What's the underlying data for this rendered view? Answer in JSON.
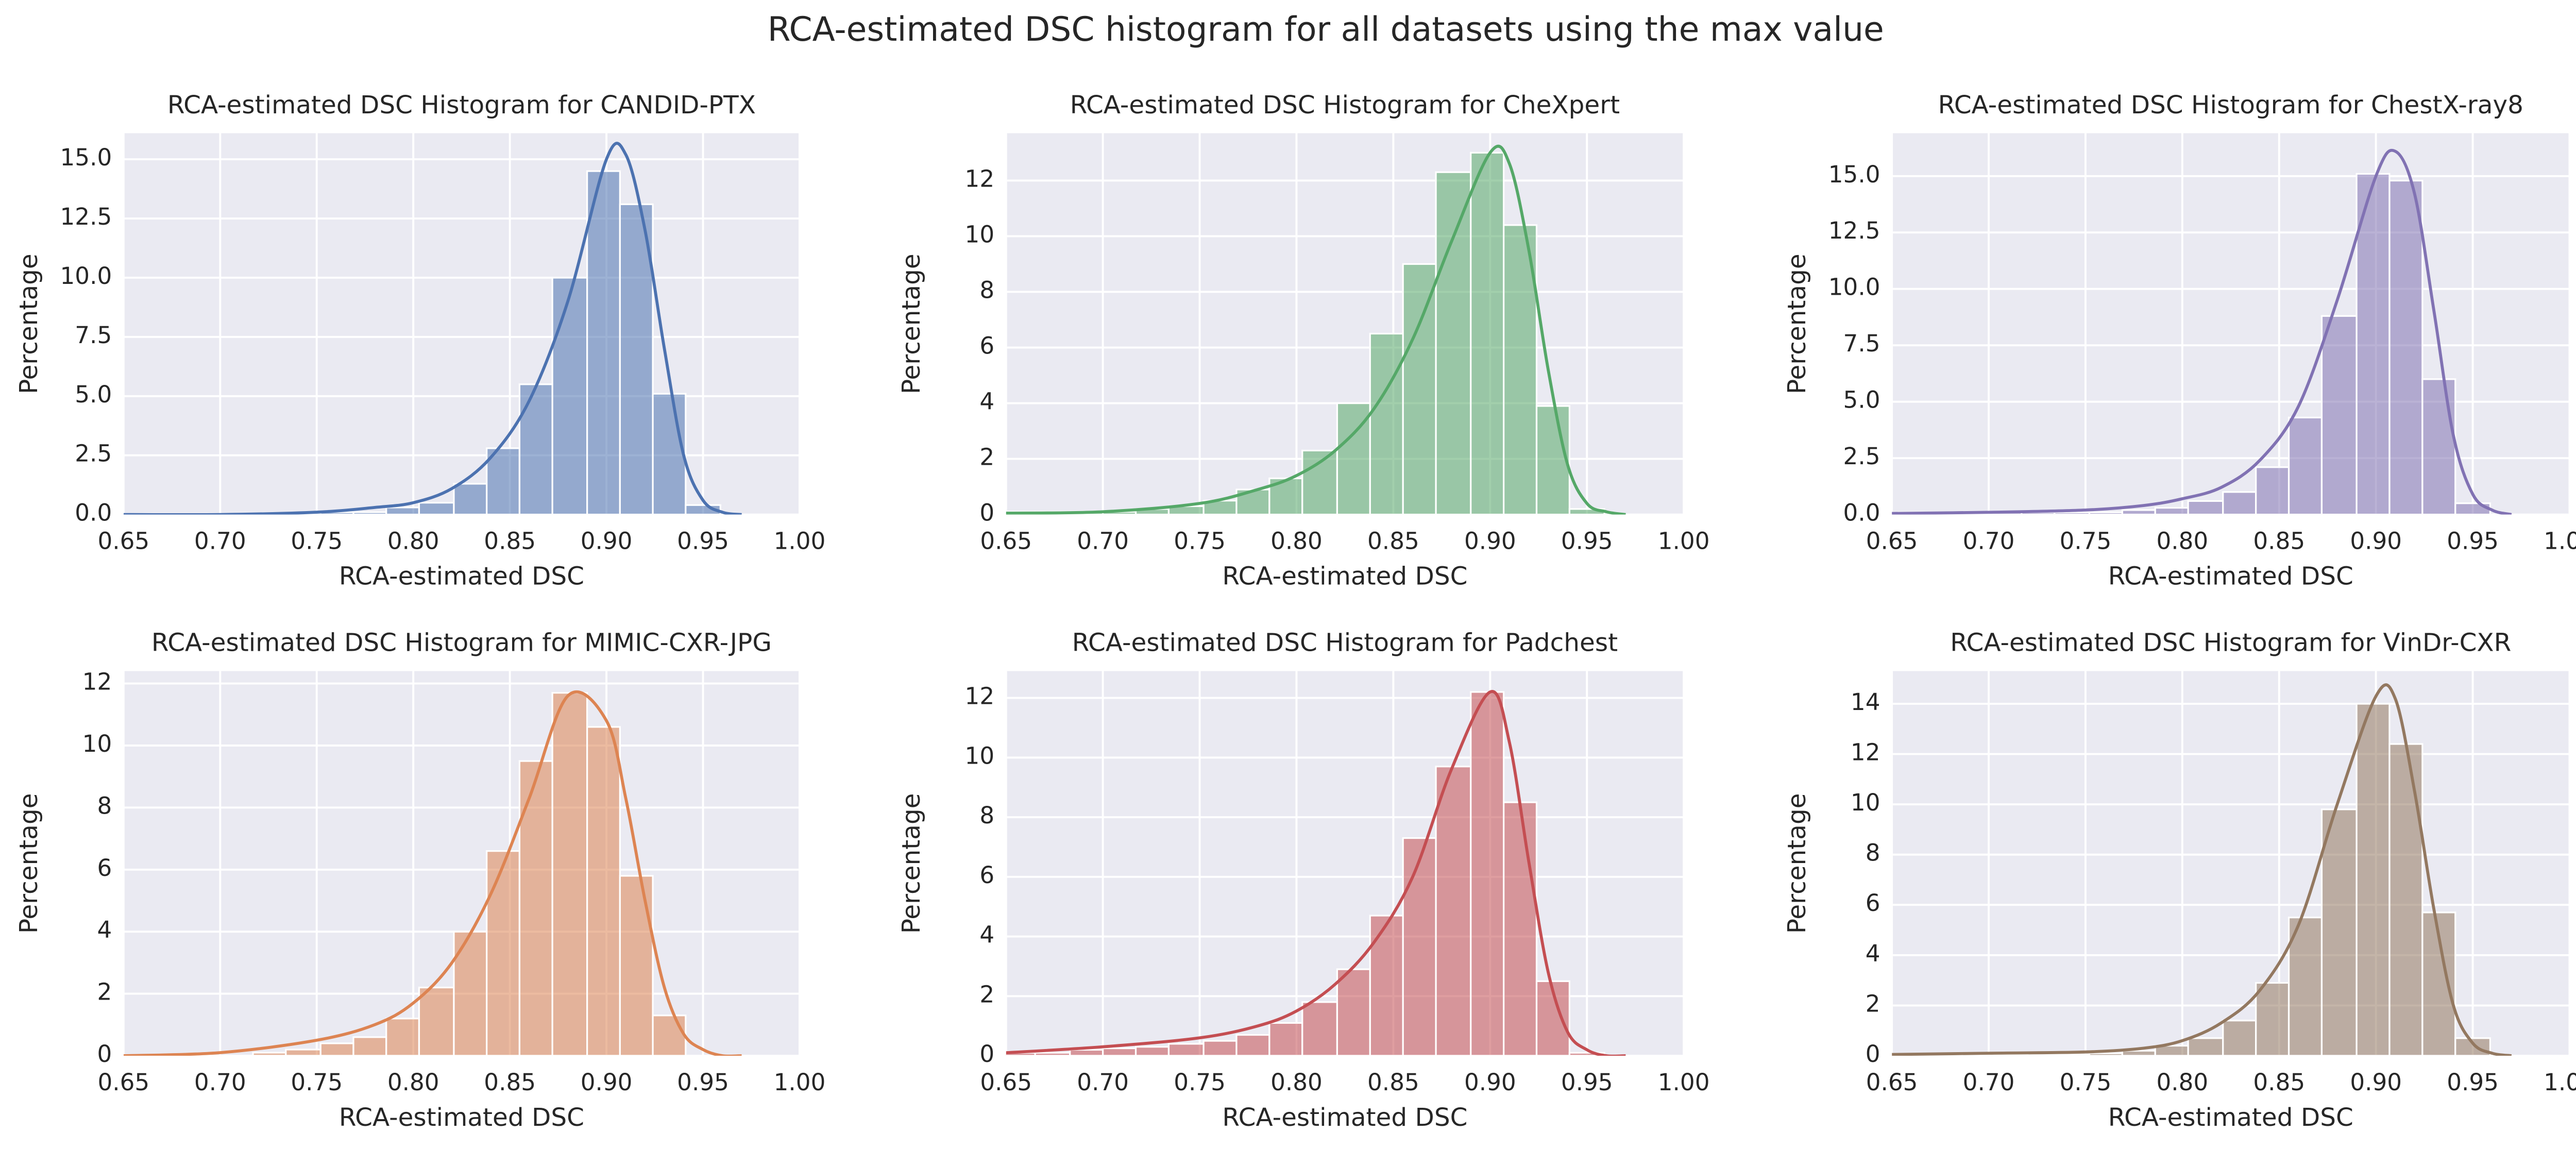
{
  "title": "RCA-estimated DSC histogram for all datasets using the max value",
  "chart_data": [
    {
      "type": "histogram",
      "title": "RCA-estimated DSC Histogram for CANDID-PTX",
      "xlabel": "RCA-estimated DSC",
      "ylabel": "Percentage",
      "color": "#4c72b0",
      "bins": [
        0.648,
        0.665,
        0.683,
        0.7,
        0.717,
        0.734,
        0.752,
        0.769,
        0.786,
        0.803,
        0.821,
        0.838,
        0.855,
        0.872,
        0.89,
        0.907,
        0.924,
        0.941,
        0.959
      ],
      "values": [
        0,
        0,
        0,
        0,
        0,
        0,
        0.1,
        0.1,
        0.3,
        0.5,
        1.3,
        2.8,
        5.5,
        10.0,
        14.5,
        13.1,
        5.1,
        0.4
      ],
      "line": {
        "x": [
          0.65,
          0.7,
          0.75,
          0.78,
          0.8,
          0.82,
          0.84,
          0.86,
          0.88,
          0.9,
          0.91,
          0.92,
          0.93,
          0.94,
          0.95,
          0.96,
          0.97
        ],
        "values": [
          0,
          0,
          0.1,
          0.3,
          0.5,
          1.1,
          2.4,
          4.8,
          9.0,
          15.0,
          15.2,
          12.0,
          7.0,
          2.5,
          0.6,
          0.1,
          0
        ]
      },
      "xlim": [
        0.65,
        1.0
      ],
      "xticks": [
        0.65,
        {
          "value": 0.7,
          "label": "0.70"
        },
        0.75,
        {
          "value": 0.8,
          "label": "0.80"
        },
        0.85,
        {
          "value": 0.9,
          "label": "0.90"
        },
        0.95,
        {
          "value": 1.0,
          "label": "1.00"
        }
      ],
      "ylim": [
        0,
        16.1
      ],
      "yticks": [
        {
          "value": 0,
          "label": "0.0"
        },
        2.5,
        {
          "value": 5,
          "label": "5.0"
        },
        7.5,
        {
          "value": 10,
          "label": "10.0"
        },
        12.5,
        {
          "value": 15,
          "label": "15.0"
        }
      ],
      "grid": true
    },
    {
      "type": "histogram",
      "title": "RCA-estimated DSC Histogram for CheXpert",
      "xlabel": "RCA-estimated DSC",
      "ylabel": "Percentage",
      "color": "#55a868",
      "bins": [
        0.648,
        0.665,
        0.683,
        0.7,
        0.717,
        0.734,
        0.752,
        0.769,
        0.786,
        0.803,
        0.821,
        0.838,
        0.855,
        0.872,
        0.89,
        0.907,
        0.924,
        0.941,
        0.959
      ],
      "values": [
        0.1,
        0.1,
        0.1,
        0.1,
        0.2,
        0.3,
        0.5,
        0.9,
        1.3,
        2.3,
        4.0,
        6.5,
        9.0,
        12.3,
        13.0,
        10.4,
        3.9,
        0.2
      ],
      "line": {
        "x": [
          0.65,
          0.7,
          0.75,
          0.78,
          0.8,
          0.82,
          0.84,
          0.86,
          0.88,
          0.9,
          0.91,
          0.92,
          0.93,
          0.94,
          0.95,
          0.96,
          0.97
        ],
        "values": [
          0.05,
          0.1,
          0.4,
          0.9,
          1.4,
          2.3,
          3.8,
          6.3,
          9.8,
          13.0,
          12.6,
          9.5,
          5.2,
          1.8,
          0.4,
          0.1,
          0
        ]
      },
      "xlim": [
        0.65,
        1.0
      ],
      "xticks": [
        0.65,
        {
          "value": 0.7,
          "label": "0.70"
        },
        0.75,
        {
          "value": 0.8,
          "label": "0.80"
        },
        0.85,
        {
          "value": 0.9,
          "label": "0.90"
        },
        0.95,
        {
          "value": 1.0,
          "label": "1.00"
        }
      ],
      "ylim": [
        0,
        13.7
      ],
      "yticks": [
        0,
        2,
        4,
        6,
        8,
        10,
        12
      ],
      "grid": true
    },
    {
      "type": "histogram",
      "title": "RCA-estimated DSC Histogram for ChestX-ray8",
      "xlabel": "RCA-estimated DSC",
      "ylabel": "Percentage",
      "color": "#8172b3",
      "bins": [
        0.648,
        0.665,
        0.683,
        0.7,
        0.717,
        0.734,
        0.752,
        0.769,
        0.786,
        0.803,
        0.821,
        0.838,
        0.855,
        0.872,
        0.89,
        0.907,
        0.924,
        0.941,
        0.959
      ],
      "values": [
        0.1,
        0.1,
        0.1,
        0.1,
        0.1,
        0.1,
        0.1,
        0.2,
        0.3,
        0.6,
        1.0,
        2.1,
        4.3,
        8.8,
        15.1,
        14.8,
        6.0,
        0.5
      ],
      "line": {
        "x": [
          0.65,
          0.7,
          0.75,
          0.78,
          0.8,
          0.82,
          0.84,
          0.86,
          0.88,
          0.9,
          0.91,
          0.92,
          0.93,
          0.94,
          0.95,
          0.96,
          0.97
        ],
        "values": [
          0.05,
          0.1,
          0.2,
          0.4,
          0.7,
          1.2,
          2.4,
          4.8,
          9.5,
          15.0,
          16.1,
          14.2,
          9.0,
          3.5,
          0.9,
          0.2,
          0
        ]
      },
      "xlim": [
        0.65,
        1.0
      ],
      "xticks": [
        0.65,
        {
          "value": 0.7,
          "label": "0.70"
        },
        0.75,
        {
          "value": 0.8,
          "label": "0.80"
        },
        0.85,
        {
          "value": 0.9,
          "label": "0.90"
        },
        0.95,
        {
          "value": 1.0,
          "label": "1.00"
        }
      ],
      "ylim": [
        0,
        16.9
      ],
      "yticks": [
        {
          "value": 0,
          "label": "0.0"
        },
        2.5,
        {
          "value": 5,
          "label": "5.0"
        },
        7.5,
        {
          "value": 10,
          "label": "10.0"
        },
        12.5,
        {
          "value": 15,
          "label": "15.0"
        }
      ],
      "grid": true
    },
    {
      "type": "histogram",
      "title": "RCA-estimated DSC Histogram for MIMIC-CXR-JPG",
      "xlabel": "RCA-estimated DSC",
      "ylabel": "Percentage",
      "color": "#dd8452",
      "bins": [
        0.648,
        0.665,
        0.683,
        0.7,
        0.717,
        0.734,
        0.752,
        0.769,
        0.786,
        0.803,
        0.821,
        0.838,
        0.855,
        0.872,
        0.89,
        0.907,
        0.924,
        0.941,
        0.959
      ],
      "values": [
        0,
        0,
        0,
        0,
        0.1,
        0.2,
        0.4,
        0.6,
        1.2,
        2.2,
        4.0,
        6.6,
        9.5,
        11.7,
        10.6,
        5.8,
        1.3,
        0
      ],
      "line": {
        "x": [
          0.65,
          0.7,
          0.75,
          0.78,
          0.8,
          0.82,
          0.84,
          0.86,
          0.88,
          0.9,
          0.91,
          0.92,
          0.93,
          0.94,
          0.95,
          0.96,
          0.97
        ],
        "values": [
          0,
          0.1,
          0.5,
          1.0,
          1.7,
          3.0,
          5.2,
          8.3,
          11.6,
          10.8,
          8.3,
          5.0,
          2.2,
          0.7,
          0.2,
          0,
          0
        ]
      },
      "xlim": [
        0.65,
        1.0
      ],
      "xticks": [
        0.65,
        {
          "value": 0.7,
          "label": "0.70"
        },
        0.75,
        {
          "value": 0.8,
          "label": "0.80"
        },
        0.85,
        {
          "value": 0.9,
          "label": "0.90"
        },
        0.95,
        {
          "value": 1.0,
          "label": "1.00"
        }
      ],
      "ylim": [
        0,
        12.4
      ],
      "yticks": [
        0,
        2,
        4,
        6,
        8,
        10,
        12
      ],
      "grid": true
    },
    {
      "type": "histogram",
      "title": "RCA-estimated DSC Histogram for Padchest",
      "xlabel": "RCA-estimated DSC",
      "ylabel": "Percentage",
      "color": "#c44e52",
      "bins": [
        0.648,
        0.665,
        0.683,
        0.7,
        0.717,
        0.734,
        0.752,
        0.769,
        0.786,
        0.803,
        0.821,
        0.838,
        0.855,
        0.872,
        0.89,
        0.907,
        0.924,
        0.941,
        0.959
      ],
      "values": [
        0.1,
        0.1,
        0.2,
        0.25,
        0.3,
        0.4,
        0.5,
        0.7,
        1.1,
        1.8,
        2.9,
        4.7,
        7.3,
        9.7,
        12.2,
        8.5,
        2.5,
        0.1
      ],
      "line": {
        "x": [
          0.65,
          0.7,
          0.75,
          0.78,
          0.8,
          0.82,
          0.84,
          0.86,
          0.88,
          0.9,
          0.91,
          0.92,
          0.93,
          0.94,
          0.95,
          0.96,
          0.97
        ],
        "values": [
          0.1,
          0.3,
          0.6,
          1.0,
          1.5,
          2.4,
          3.8,
          6.0,
          9.6,
          12.2,
          10.5,
          6.5,
          2.8,
          0.8,
          0.2,
          0,
          0
        ]
      },
      "xlim": [
        0.65,
        1.0
      ],
      "xticks": [
        0.65,
        {
          "value": 0.7,
          "label": "0.70"
        },
        0.75,
        {
          "value": 0.8,
          "label": "0.80"
        },
        0.85,
        {
          "value": 0.9,
          "label": "0.90"
        },
        0.95,
        {
          "value": 1.0,
          "label": "1.00"
        }
      ],
      "ylim": [
        0,
        12.9
      ],
      "yticks": [
        0,
        2,
        4,
        6,
        8,
        10,
        12
      ],
      "grid": true
    },
    {
      "type": "histogram",
      "title": "RCA-estimated DSC Histogram for VinDr-CXR",
      "xlabel": "RCA-estimated DSC",
      "ylabel": "Percentage",
      "color": "#937860",
      "bins": [
        0.648,
        0.665,
        0.683,
        0.7,
        0.717,
        0.734,
        0.752,
        0.769,
        0.786,
        0.803,
        0.821,
        0.838,
        0.855,
        0.872,
        0.89,
        0.907,
        0.924,
        0.941,
        0.959
      ],
      "values": [
        0.05,
        0.05,
        0.05,
        0.05,
        0.05,
        0.05,
        0.1,
        0.2,
        0.4,
        0.7,
        1.4,
        2.9,
        5.5,
        9.8,
        14.0,
        12.4,
        5.7,
        0.7
      ],
      "line": {
        "x": [
          0.65,
          0.7,
          0.75,
          0.78,
          0.8,
          0.82,
          0.84,
          0.86,
          0.88,
          0.9,
          0.91,
          0.92,
          0.93,
          0.94,
          0.95,
          0.96,
          0.97
        ],
        "values": [
          0.05,
          0.1,
          0.15,
          0.3,
          0.6,
          1.3,
          2.6,
          5.2,
          10.0,
          14.3,
          14.2,
          10.5,
          5.8,
          2.0,
          0.5,
          0.1,
          0
        ]
      },
      "xlim": [
        0.65,
        1.0
      ],
      "xticks": [
        0.65,
        {
          "value": 0.7,
          "label": "0.70"
        },
        0.75,
        {
          "value": 0.8,
          "label": "0.80"
        },
        0.85,
        {
          "value": 0.9,
          "label": "0.90"
        },
        0.95,
        {
          "value": 1.0,
          "label": "1.00"
        }
      ],
      "ylim": [
        0,
        15.3
      ],
      "yticks": [
        0,
        2,
        4,
        6,
        8,
        10,
        12,
        14
      ],
      "grid": true
    }
  ]
}
